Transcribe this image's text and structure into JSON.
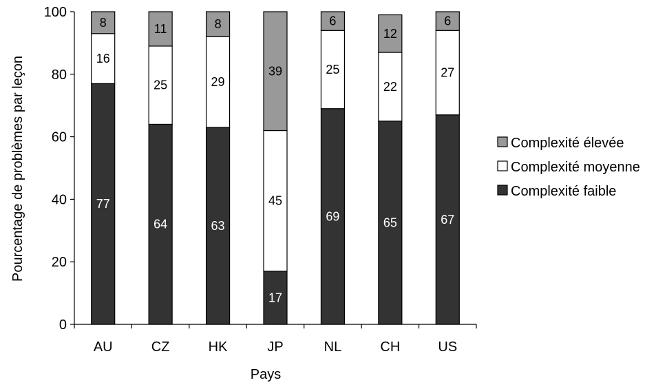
{
  "chart_data": {
    "type": "bar",
    "stacked": true,
    "title": "",
    "xlabel": "Pays",
    "ylabel": "Pourcentage de problèmes par leçon",
    "ylim": [
      0,
      100
    ],
    "yticks": [
      0,
      20,
      40,
      60,
      80,
      100
    ],
    "grid": false,
    "legend_position": "right",
    "categories": [
      "AU",
      "CZ",
      "HK",
      "JP",
      "NL",
      "CH",
      "US"
    ],
    "series": [
      {
        "name": "Complexité faible",
        "color": "#333333",
        "label_color": "#ffffff",
        "values": [
          77,
          64,
          63,
          17,
          69,
          65,
          67
        ]
      },
      {
        "name": "Complexité moyenne",
        "color": "#ffffff",
        "label_color": "#000000",
        "values": [
          16,
          25,
          29,
          45,
          25,
          22,
          27
        ]
      },
      {
        "name": "Complexité élevée",
        "color": "#999999",
        "label_color": "#000000",
        "values": [
          8,
          11,
          8,
          39,
          6,
          12,
          6
        ]
      }
    ],
    "legend_order": [
      2,
      1,
      0
    ]
  }
}
